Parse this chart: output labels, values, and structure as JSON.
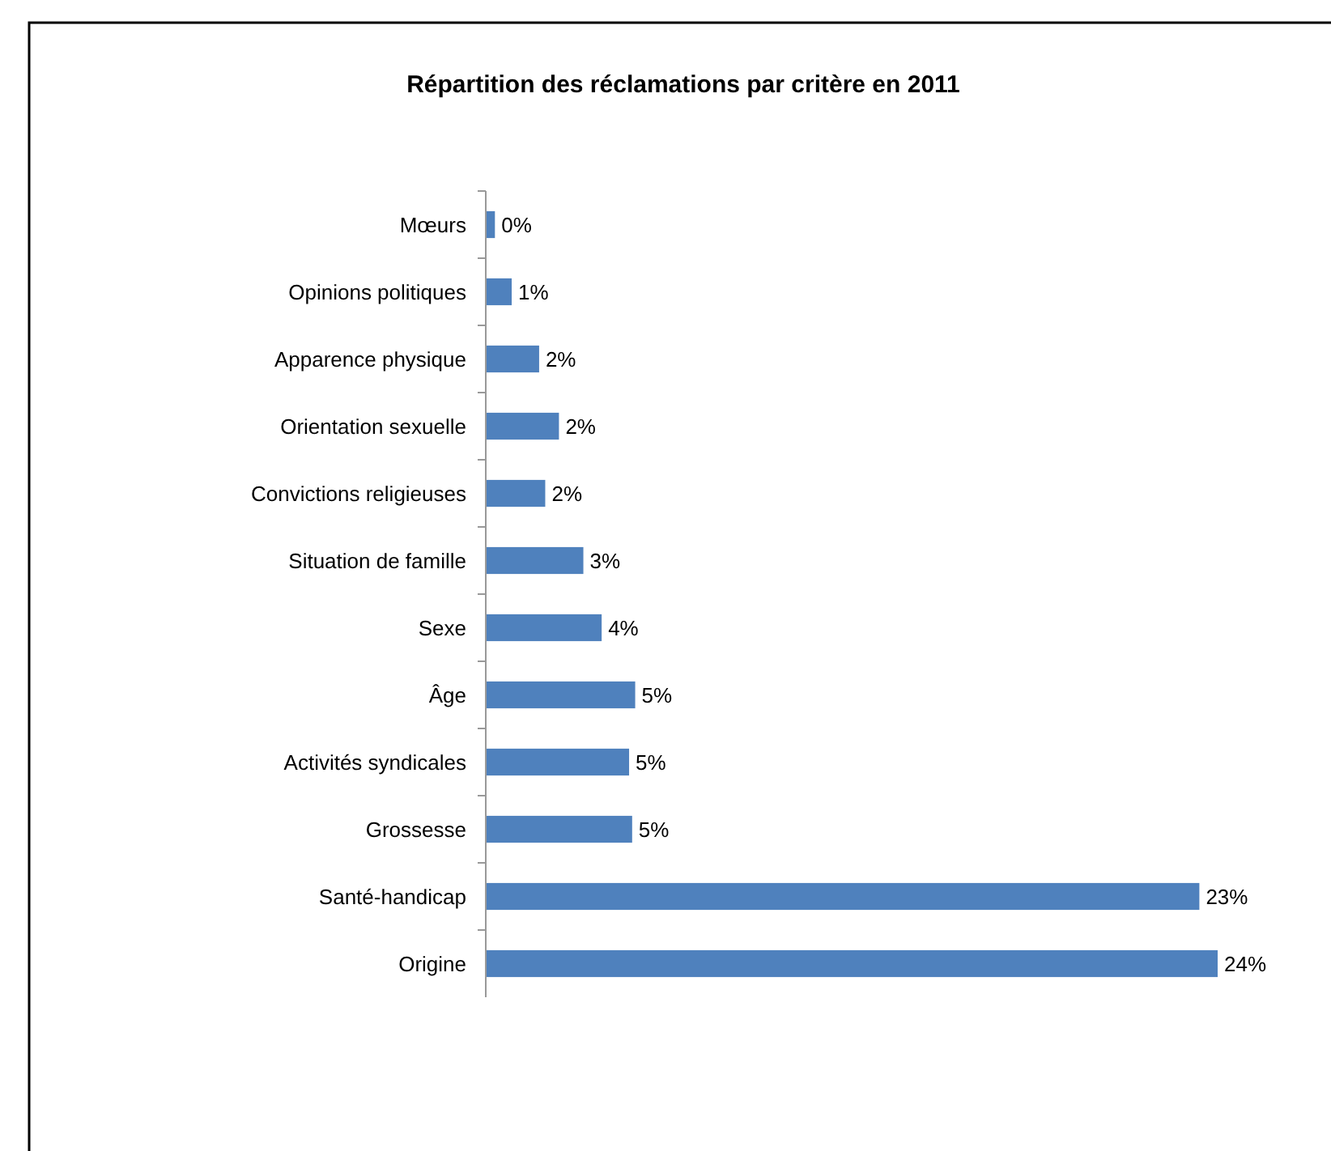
{
  "chart_data": {
    "type": "bar",
    "orientation": "horizontal",
    "title": "Répartition des réclamations par critère en 2011",
    "categories": [
      "Mœurs",
      "Opinions politiques",
      "Apparence physique",
      "Orientation sexuelle",
      "Convictions religieuses",
      "Situation de famille",
      "Sexe",
      "Âge",
      "Activités syndicales",
      "Grossesse",
      "Santé-handicap",
      "Origine"
    ],
    "values": [
      0.3,
      0.85,
      1.75,
      2.4,
      1.95,
      3.2,
      3.8,
      4.9,
      4.7,
      4.8,
      23.4,
      24.0
    ],
    "value_labels": [
      "0%",
      "1%",
      "2%",
      "2%",
      "2%",
      "3%",
      "4%",
      "5%",
      "5%",
      "5%",
      "23%",
      "24%"
    ],
    "color": "#4f81bd"
  }
}
